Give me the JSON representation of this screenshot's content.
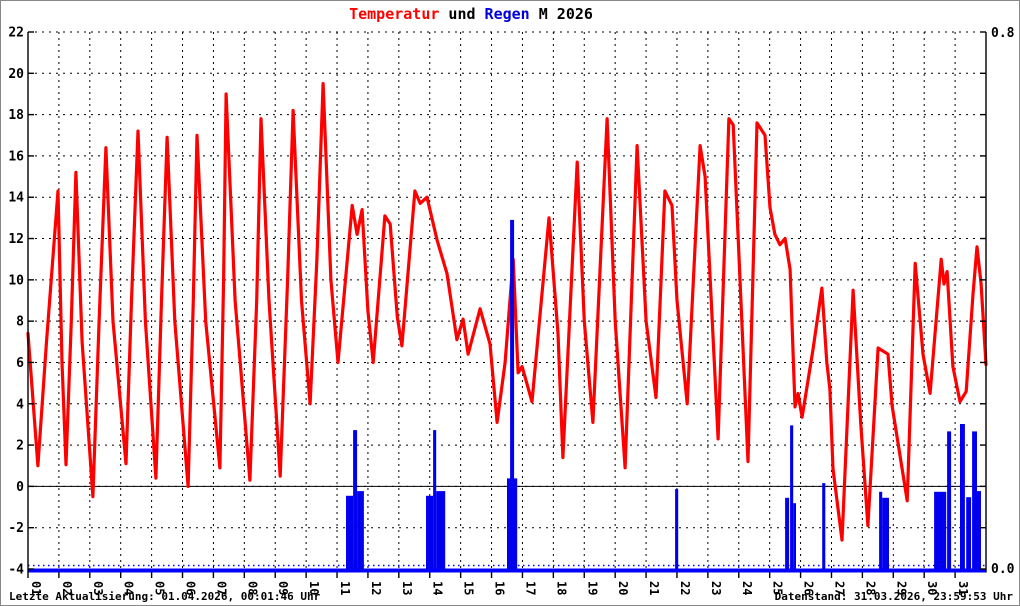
{
  "title": {
    "part_temperature": "Temperatur",
    "part_and": " und ",
    "part_rain": "Regen",
    "part_month": " M 2026"
  },
  "footer": {
    "last_update": "Letzte Aktualisierung: 01.04.2026, 00:01:46 Uhr",
    "data_state": "Datenstand: 31.03.2026, 23:59:53 Uhr"
  },
  "chart_data": {
    "type": "line+bar",
    "title": "Temperatur und Regen M 2026",
    "legend_position": "none",
    "grid": "dashed",
    "temp_axis": {
      "side": "left",
      "min": -4,
      "max": 22,
      "tick_step": 2,
      "tick_labels": [
        "22",
        "20",
        "18",
        "16",
        "14",
        "12",
        "10",
        "8",
        "6",
        "4",
        "2",
        "0",
        "-2",
        "-4"
      ]
    },
    "rain_axis": {
      "side": "right",
      "min": 0.0,
      "max": 0.8,
      "tick_labels": [
        "0.8",
        "0.0"
      ]
    },
    "x_axis": {
      "unit": "day of month (March 2026)",
      "range_days": 31,
      "day_labels": [
        "01",
        "02",
        "03",
        "04",
        "05",
        "06",
        "07",
        "08",
        "09",
        "10",
        "11",
        "12",
        "13",
        "14",
        "15",
        "16",
        "17",
        "18",
        "19",
        "20",
        "21",
        "22",
        "23",
        "24",
        "25",
        "26",
        "27",
        "28",
        "29",
        "30",
        "31"
      ]
    },
    "colors": {
      "temperature": "#ff0000",
      "rain": "#0000ee",
      "rain_baseline": "#0000ff",
      "grid": "#000000",
      "zero_line": "#000000"
    },
    "temperature_series_day_degC": [
      [
        0,
        7.4
      ],
      [
        0.12,
        5.0
      ],
      [
        0.32,
        1.0
      ],
      [
        0.6,
        7.0
      ],
      [
        0.97,
        14.3
      ],
      [
        1.1,
        6.0
      ],
      [
        1.23,
        1.05
      ],
      [
        1.4,
        8.0
      ],
      [
        1.55,
        15.2
      ],
      [
        1.75,
        7.0
      ],
      [
        2.1,
        -0.5
      ],
      [
        2.3,
        8.0
      ],
      [
        2.52,
        16.4
      ],
      [
        2.75,
        8.0
      ],
      [
        3.17,
        1.1
      ],
      [
        3.35,
        9.0
      ],
      [
        3.56,
        17.2
      ],
      [
        3.8,
        8.0
      ],
      [
        4.14,
        0.4
      ],
      [
        4.32,
        9.0
      ],
      [
        4.5,
        16.9
      ],
      [
        4.75,
        8.0
      ],
      [
        5.18,
        0.0
      ],
      [
        5.35,
        9.0
      ],
      [
        5.47,
        17.0
      ],
      [
        5.75,
        8.0
      ],
      [
        6.21,
        0.9
      ],
      [
        6.33,
        10.0
      ],
      [
        6.41,
        19.0
      ],
      [
        6.7,
        9.0
      ],
      [
        7.18,
        0.3
      ],
      [
        7.4,
        9.0
      ],
      [
        7.54,
        17.8
      ],
      [
        7.8,
        9.0
      ],
      [
        8.16,
        0.5
      ],
      [
        8.4,
        10.0
      ],
      [
        8.58,
        18.2
      ],
      [
        8.85,
        9.0
      ],
      [
        9.13,
        4.0
      ],
      [
        9.35,
        11.0
      ],
      [
        9.55,
        19.5
      ],
      [
        9.8,
        10.0
      ],
      [
        10.03,
        6.0
      ],
      [
        10.49,
        13.6
      ],
      [
        10.65,
        12.2
      ],
      [
        10.81,
        13.4
      ],
      [
        11.0,
        8.5
      ],
      [
        11.17,
        6.0
      ],
      [
        11.55,
        13.1
      ],
      [
        11.72,
        12.7
      ],
      [
        11.95,
        8.2
      ],
      [
        12.1,
        6.8
      ],
      [
        12.52,
        14.3
      ],
      [
        12.69,
        13.7
      ],
      [
        12.91,
        14.0
      ],
      [
        13.24,
        11.9
      ],
      [
        13.56,
        10.3
      ],
      [
        13.88,
        7.1
      ],
      [
        14.08,
        8.1
      ],
      [
        14.24,
        6.4
      ],
      [
        14.63,
        8.6
      ],
      [
        14.95,
        6.9
      ],
      [
        15.18,
        3.1
      ],
      [
        15.44,
        6.0
      ],
      [
        15.7,
        11.0
      ],
      [
        15.86,
        5.5
      ],
      [
        15.99,
        5.8
      ],
      [
        16.31,
        4.1
      ],
      [
        16.86,
        13.0
      ],
      [
        17.15,
        7.4
      ],
      [
        17.31,
        1.4
      ],
      [
        17.77,
        15.7
      ],
      [
        18.0,
        8.0
      ],
      [
        18.28,
        3.1
      ],
      [
        18.74,
        17.8
      ],
      [
        19.0,
        8.0
      ],
      [
        19.32,
        0.9
      ],
      [
        19.71,
        16.5
      ],
      [
        20.0,
        8.0
      ],
      [
        20.32,
        4.3
      ],
      [
        20.61,
        14.3
      ],
      [
        20.84,
        13.6
      ],
      [
        21.0,
        9.0
      ],
      [
        21.33,
        4.0
      ],
      [
        21.75,
        16.5
      ],
      [
        21.91,
        15.0
      ],
      [
        22.33,
        2.3
      ],
      [
        22.68,
        17.8
      ],
      [
        22.82,
        17.5
      ],
      [
        23.3,
        1.2
      ],
      [
        23.59,
        17.6
      ],
      [
        23.85,
        17.0
      ],
      [
        24.01,
        13.5
      ],
      [
        24.17,
        12.2
      ],
      [
        24.33,
        11.7
      ],
      [
        24.5,
        12.0
      ],
      [
        24.66,
        10.5
      ],
      [
        24.82,
        3.85
      ],
      [
        24.92,
        4.5
      ],
      [
        25.05,
        3.35
      ],
      [
        25.4,
        6.6
      ],
      [
        25.69,
        9.6
      ],
      [
        25.85,
        6.0
      ],
      [
        25.95,
        4.7
      ],
      [
        26.05,
        0.85
      ],
      [
        26.34,
        -2.6
      ],
      [
        26.7,
        9.5
      ],
      [
        26.95,
        3.0
      ],
      [
        27.18,
        -1.9
      ],
      [
        27.51,
        6.7
      ],
      [
        27.83,
        6.4
      ],
      [
        27.96,
        3.9
      ],
      [
        28.45,
        -0.7
      ],
      [
        28.71,
        10.8
      ],
      [
        28.96,
        6.4
      ],
      [
        29.19,
        4.5
      ],
      [
        29.55,
        11.0
      ],
      [
        29.64,
        9.8
      ],
      [
        29.74,
        10.4
      ],
      [
        29.93,
        5.8
      ],
      [
        30.16,
        4.1
      ],
      [
        30.36,
        4.6
      ],
      [
        30.58,
        9.3
      ],
      [
        30.71,
        11.6
      ],
      [
        30.84,
        9.8
      ],
      [
        31.0,
        5.9
      ]
    ],
    "rain_bars_day_width_amount": [
      [
        10.29,
        0.23,
        0.109
      ],
      [
        10.52,
        0.13,
        0.207
      ],
      [
        10.65,
        0.22,
        0.116
      ],
      [
        12.88,
        0.23,
        0.109
      ],
      [
        13.11,
        0.1,
        0.207
      ],
      [
        13.21,
        0.29,
        0.116
      ],
      [
        15.5,
        0.33,
        0.135
      ],
      [
        15.6,
        0.13,
        0.52
      ],
      [
        20.94,
        0.1,
        0.119
      ],
      [
        24.5,
        0.13,
        0.106
      ],
      [
        24.66,
        0.1,
        0.214
      ],
      [
        24.76,
        0.09,
        0.098
      ],
      [
        25.7,
        0.1,
        0.128
      ],
      [
        27.54,
        0.1,
        0.115
      ],
      [
        27.64,
        0.22,
        0.106
      ],
      [
        29.32,
        0.39,
        0.115
      ],
      [
        29.74,
        0.13,
        0.205
      ],
      [
        30.16,
        0.16,
        0.216
      ],
      [
        30.36,
        0.16,
        0.107
      ],
      [
        30.55,
        0.16,
        0.205
      ],
      [
        30.71,
        0.13,
        0.116
      ]
    ]
  }
}
